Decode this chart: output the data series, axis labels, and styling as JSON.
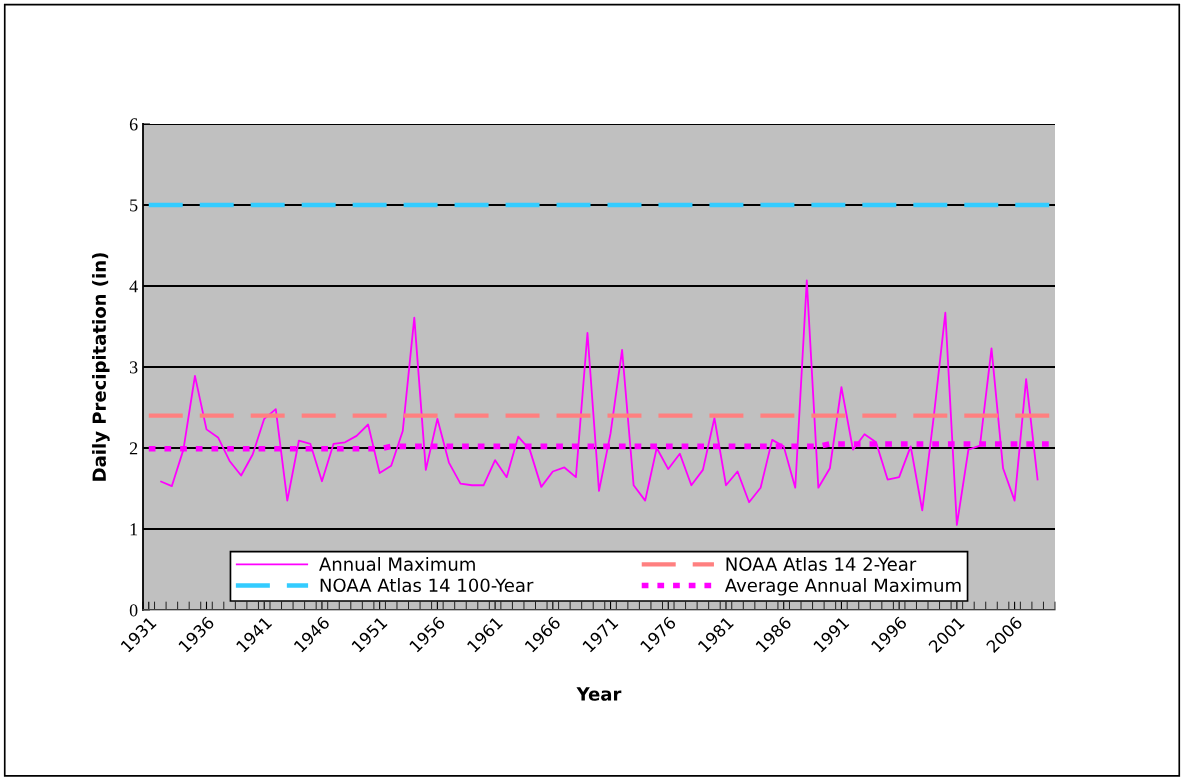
{
  "chart_data": {
    "type": "line",
    "xlabel": "Year",
    "ylabel": "Daily Precipitation (in)",
    "categories": [
      "1931",
      null,
      null,
      null,
      null,
      "1936",
      null,
      null,
      null,
      null,
      "1941",
      null,
      null,
      null,
      null,
      "1946",
      null,
      null,
      null,
      null,
      "1951",
      null,
      null,
      null,
      null,
      "1956",
      null,
      null,
      null,
      null,
      "1961",
      null,
      null,
      null,
      null,
      "1966",
      null,
      null,
      null,
      null,
      "1971",
      null,
      null,
      null,
      null,
      "1976",
      null,
      null,
      null,
      null,
      "1981",
      null,
      null,
      null,
      null,
      "1986",
      null,
      null,
      null,
      null,
      "1991",
      null,
      null,
      null,
      null,
      "1996",
      null,
      null,
      null,
      null,
      "2001",
      null,
      null,
      null,
      null,
      "2006",
      null,
      null,
      null
    ],
    "series": [
      {
        "name": "Annual Maximum",
        "color": "#ff00ff",
        "line_style": "solid",
        "values": [
          null,
          1.59,
          1.53,
          1.98,
          2.89,
          2.23,
          2.13,
          1.84,
          1.66,
          1.92,
          2.36,
          2.48,
          1.35,
          2.09,
          2.05,
          1.59,
          2.05,
          2.07,
          2.15,
          2.29,
          1.69,
          1.78,
          2.21,
          3.61,
          1.73,
          2.36,
          1.82,
          1.56,
          1.54,
          1.54,
          1.85,
          1.64,
          2.14,
          1.98,
          1.52,
          1.71,
          1.76,
          1.64,
          3.42,
          1.47,
          2.18,
          3.21,
          1.54,
          1.35,
          2.0,
          1.74,
          1.93,
          1.54,
          1.73,
          2.37,
          1.54,
          1.71,
          1.33,
          1.51,
          2.1,
          2.02,
          1.51,
          4.07,
          1.51,
          1.75,
          2.75,
          1.98,
          2.17,
          2.07,
          1.61,
          1.64,
          2.02,
          1.23,
          2.39,
          3.67,
          1.05,
          1.98,
          2.03,
          3.23,
          1.75,
          1.35,
          2.85,
          1.6,
          null
        ]
      },
      {
        "name": "NOAA Atlas 14 2-Year",
        "color": "#ff8080",
        "line_style": "dashed",
        "values": [
          2.4,
          2.4,
          2.4,
          2.4,
          2.4,
          2.4,
          2.4,
          2.4,
          2.4,
          2.4,
          2.4,
          2.4,
          2.4,
          2.4,
          2.4,
          2.4,
          2.4,
          2.4,
          2.4,
          2.4,
          2.4,
          2.4,
          2.4,
          2.4,
          2.4,
          2.4,
          2.4,
          2.4,
          2.4,
          2.4,
          2.4,
          2.4,
          2.4,
          2.4,
          2.4,
          2.4,
          2.4,
          2.4,
          2.4,
          2.4,
          2.4,
          2.4,
          2.4,
          2.4,
          2.4,
          2.4,
          2.4,
          2.4,
          2.4,
          2.4,
          2.4,
          2.4,
          2.4,
          2.4,
          2.4,
          2.4,
          2.4,
          2.4,
          2.4,
          2.4,
          2.4,
          2.4,
          2.4,
          2.4,
          2.4,
          2.4,
          2.4,
          2.4,
          2.4,
          2.4,
          2.4,
          2.4,
          2.4,
          2.4,
          2.4,
          2.4,
          2.4,
          2.4,
          2.4
        ]
      },
      {
        "name": "NOAA Atlas 14 100-Year",
        "color": "#33ccff",
        "line_style": "dashed",
        "values": [
          5.0,
          5.0,
          5.0,
          5.0,
          5.0,
          5.0,
          5.0,
          5.0,
          5.0,
          5.0,
          5.0,
          5.0,
          5.0,
          5.0,
          5.0,
          5.0,
          5.0,
          5.0,
          5.0,
          5.0,
          5.0,
          5.0,
          5.0,
          5.0,
          5.0,
          5.0,
          5.0,
          5.0,
          5.0,
          5.0,
          5.0,
          5.0,
          5.0,
          5.0,
          5.0,
          5.0,
          5.0,
          5.0,
          5.0,
          5.0,
          5.0,
          5.0,
          5.0,
          5.0,
          5.0,
          5.0,
          5.0,
          5.0,
          5.0,
          5.0,
          5.0,
          5.0,
          5.0,
          5.0,
          5.0,
          5.0,
          5.0,
          5.0,
          5.0,
          5.0,
          5.0,
          5.0,
          5.0,
          5.0,
          5.0,
          5.0,
          5.0,
          5.0,
          5.0,
          5.0,
          5.0,
          5.0,
          5.0,
          5.0,
          5.0,
          5.0,
          5.0,
          5.0,
          5.0
        ]
      },
      {
        "name": "Average Annual Maximum",
        "color": "#ff00ff",
        "line_style": "dotted",
        "values": [
          1.99,
          1.99,
          1.99,
          1.99,
          1.99,
          1.99,
          1.99,
          1.99,
          1.99,
          1.99,
          1.99,
          1.99,
          1.99,
          1.99,
          1.99,
          1.99,
          1.99,
          1.99,
          1.99,
          1.99,
          1.99,
          2.02,
          2.02,
          2.02,
          2.02,
          2.02,
          2.02,
          2.02,
          2.02,
          2.02,
          2.02,
          2.02,
          2.02,
          2.02,
          2.02,
          2.02,
          2.02,
          2.02,
          2.02,
          2.02,
          2.02,
          2.02,
          2.02,
          2.02,
          2.02,
          2.02,
          2.02,
          2.02,
          2.02,
          2.02,
          2.02,
          2.02,
          2.02,
          2.02,
          2.02,
          2.02,
          2.02,
          2.02,
          2.02,
          2.05,
          2.05,
          2.05,
          2.05,
          2.05,
          2.05,
          2.05,
          2.05,
          2.05,
          2.05,
          2.05,
          2.05,
          2.05,
          2.05,
          2.05,
          2.05,
          2.05,
          2.05,
          2.05,
          2.05
        ]
      }
    ],
    "ylim": [
      0,
      6
    ],
    "yticks": [
      0,
      1,
      2,
      3,
      4,
      5,
      6
    ],
    "grid": "y",
    "legend": "bottom",
    "marker": "none"
  }
}
